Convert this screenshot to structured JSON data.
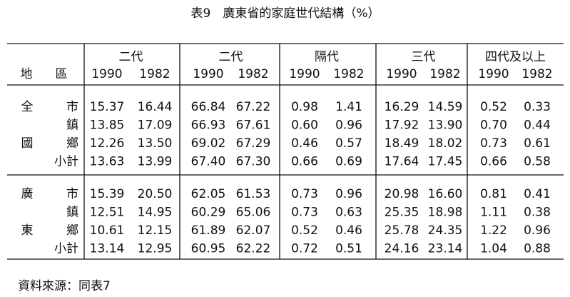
{
  "title": "表9　廣東省的家庭世代結構（%）",
  "header": {
    "corner": [
      "地",
      "區"
    ],
    "groups": [
      "二代",
      "二代",
      "隔代",
      "三代",
      "四代及以上"
    ],
    "years": [
      "1990",
      "1982"
    ]
  },
  "sections": [
    {
      "region_chars": [
        "全",
        "國"
      ],
      "rows": [
        {
          "label": "市",
          "cells": [
            "15.37",
            "16.44",
            "66.84",
            "67.22",
            "0.98",
            "1.41",
            "16.29",
            "14.59",
            "0.52",
            "0.33"
          ]
        },
        {
          "label": "鎮",
          "cells": [
            "13.85",
            "17.09",
            "66.93",
            "67.61",
            "0.60",
            "0.96",
            "17.92",
            "13.90",
            "0.70",
            "0.44"
          ]
        },
        {
          "label": "鄉",
          "cells": [
            "12.26",
            "13.50",
            "69.02",
            "67.29",
            "0.46",
            "0.57",
            "18.49",
            "18.02",
            "0.73",
            "0.61"
          ]
        },
        {
          "label": "小計",
          "cells": [
            "13.63",
            "13.99",
            "67.40",
            "67.30",
            "0.66",
            "0.69",
            "17.64",
            "17.45",
            "0.66",
            "0.58"
          ]
        }
      ]
    },
    {
      "region_chars": [
        "廣",
        "東"
      ],
      "rows": [
        {
          "label": "市",
          "cells": [
            "15.39",
            "20.50",
            "62.05",
            "61.53",
            "0.73",
            "0.96",
            "20.98",
            "16.60",
            "0.81",
            "0.41"
          ]
        },
        {
          "label": "鎮",
          "cells": [
            "12.51",
            "14.95",
            "60.29",
            "65.06",
            "0.73",
            "0.63",
            "25.35",
            "18.98",
            "1.11",
            "0.38"
          ]
        },
        {
          "label": "鄉",
          "cells": [
            "10.61",
            "12.15",
            "61.89",
            "62.07",
            "0.52",
            "0.46",
            "25.78",
            "24.35",
            "1.22",
            "0.96"
          ]
        },
        {
          "label": "小計",
          "cells": [
            "13.14",
            "12.95",
            "60.95",
            "62.22",
            "0.72",
            "0.51",
            "24.16",
            "23.14",
            "1.04",
            "0.88"
          ]
        }
      ]
    }
  ],
  "footnote": "資料來源：同表7"
}
